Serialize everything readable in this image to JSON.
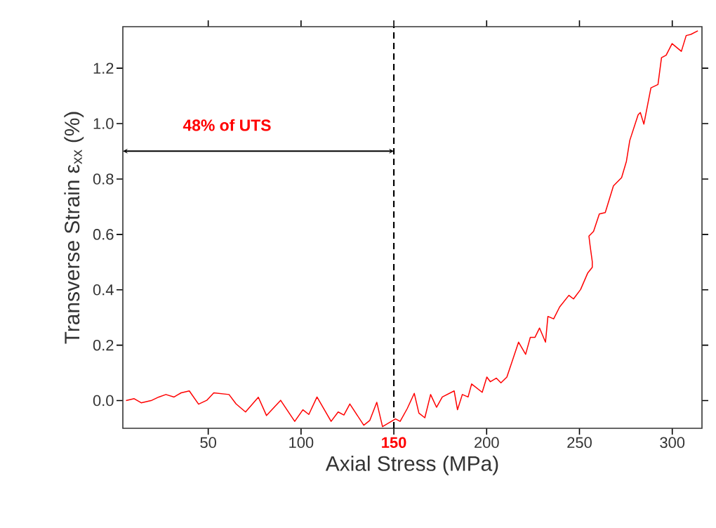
{
  "chart_data": {
    "type": "line",
    "xlabel": "Axial Stress (MPa)",
    "ylabel": "Transverse Strain  ε$_{xx}$ (%)",
    "xlim": [
      4,
      316
    ],
    "ylim": [
      -0.1,
      1.35
    ],
    "xticks": [
      50,
      100,
      150,
      200,
      250,
      300
    ],
    "yticks": [
      {
        "value": 0,
        "label": "0.0"
      },
      0.2,
      0.4,
      0.6,
      0.8,
      {
        "value": 1,
        "label": "1.0"
      },
      1.2
    ],
    "grid": false,
    "marker": "none",
    "line_style": "solid",
    "ref_lines": [
      {
        "axis": "x",
        "value": 150,
        "color": "#000000",
        "line_style": "dashed"
      }
    ],
    "annotations": [
      "48% of UTS"
    ],
    "series": [
      {
        "color": "#ff0000",
        "x": [
          5.7,
          10.1,
          13.9,
          19.6,
          23.4,
          27.2,
          31.6,
          35.4,
          39.8,
          44.8,
          49.2,
          53.0,
          61.2,
          65.0,
          70.1,
          77.0,
          81.4,
          89.0,
          96.6,
          101.0,
          104.2,
          108.6,
          116.2,
          120.0,
          123.1,
          126.3,
          133.8,
          137.0,
          140.8,
          143.9,
          150.9,
          153.4,
          157.2,
          161.0,
          163.5,
          166.7,
          169.8,
          173.0,
          176.1,
          182.5,
          184.3,
          186.9,
          190.0,
          191.9,
          197.6,
          200.1,
          202.0,
          205.2,
          207.7,
          210.9,
          217.2,
          221.0,
          223.5,
          226.0,
          228.5,
          231.7,
          233.0,
          236.1,
          239.3,
          244.3,
          246.8,
          250.6,
          254.4,
          256.9,
          256.9,
          255.7,
          255.1,
          257.6,
          260.7,
          263.9,
          268.3,
          272.7,
          275.3,
          277.1,
          281.6,
          282.8,
          284.7,
          288.5,
          292.3,
          294.2,
          296.7,
          299.9,
          304.9,
          307.5,
          310.0,
          313.8
        ],
        "values": [
          0.0,
          0.007,
          -0.008,
          0.001,
          0.013,
          0.022,
          0.013,
          0.028,
          0.035,
          -0.013,
          0.001,
          0.028,
          0.022,
          -0.012,
          -0.041,
          0.012,
          -0.054,
          0.001,
          -0.075,
          -0.033,
          -0.05,
          0.013,
          -0.075,
          -0.041,
          -0.052,
          -0.012,
          -0.089,
          -0.072,
          -0.006,
          -0.094,
          -0.066,
          -0.075,
          -0.029,
          0.026,
          -0.045,
          -0.062,
          0.022,
          -0.024,
          0.013,
          0.035,
          -0.033,
          0.022,
          0.013,
          0.06,
          0.03,
          0.085,
          0.068,
          0.081,
          0.064,
          0.085,
          0.211,
          0.167,
          0.228,
          0.228,
          0.262,
          0.211,
          0.304,
          0.295,
          0.338,
          0.38,
          0.367,
          0.401,
          0.46,
          0.481,
          0.502,
          0.561,
          0.594,
          0.611,
          0.674,
          0.679,
          0.775,
          0.805,
          0.864,
          0.939,
          1.032,
          1.04,
          0.998,
          1.129,
          1.141,
          1.238,
          1.247,
          1.289,
          1.261,
          1.318,
          1.322,
          1.335
        ]
      }
    ]
  }
}
